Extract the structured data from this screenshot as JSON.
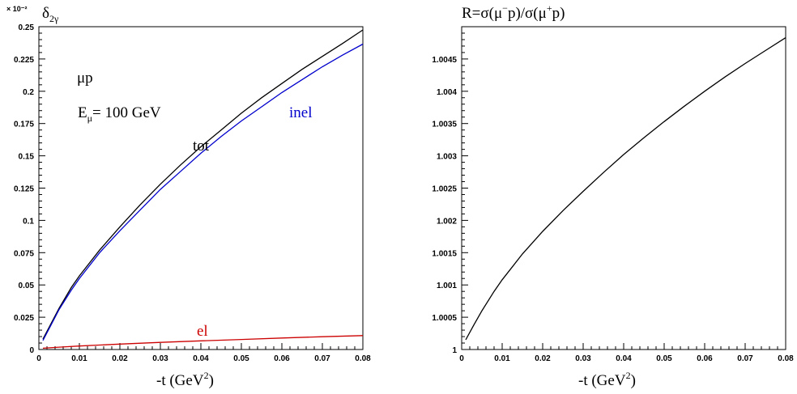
{
  "chart_data": [
    {
      "type": "line",
      "title": "δ2γ",
      "exponent_label": "× 10⁻²",
      "xlabel": "-t (GeV2)",
      "xlim": [
        0,
        0.08
      ],
      "ylim": [
        0,
        0.25
      ],
      "x_ticks": [
        "0",
        "0.01",
        "0.02",
        "0.03",
        "0.04",
        "0.05",
        "0.06",
        "0.07",
        "0.08"
      ],
      "y_ticks": [
        "0",
        "0.025",
        "0.05",
        "0.075",
        "0.1",
        "0.125",
        "0.15",
        "0.175",
        "0.2",
        "0.225",
        "0.25"
      ],
      "annotations": {
        "process": "μp",
        "energy_prefix": "E",
        "energy_sub": "μ",
        "energy_value": "= 100 GeV"
      },
      "series": [
        {
          "name": "tot",
          "color": "#000000",
          "x": [
            0.001,
            0.003,
            0.005,
            0.008,
            0.01,
            0.015,
            0.02,
            0.025,
            0.03,
            0.035,
            0.04,
            0.045,
            0.05,
            0.055,
            0.06,
            0.065,
            0.07,
            0.075,
            0.08
          ],
          "y": [
            0.008,
            0.02,
            0.032,
            0.048,
            0.057,
            0.077,
            0.095,
            0.112,
            0.128,
            0.143,
            0.157,
            0.17,
            0.183,
            0.195,
            0.206,
            0.217,
            0.227,
            0.237,
            0.2475
          ]
        },
        {
          "name": "inel",
          "color": "#0000cc",
          "x": [
            0.001,
            0.003,
            0.005,
            0.008,
            0.01,
            0.015,
            0.02,
            0.025,
            0.03,
            0.035,
            0.04,
            0.045,
            0.05,
            0.055,
            0.06,
            0.065,
            0.07,
            0.075,
            0.08
          ],
          "y": [
            0.007,
            0.019,
            0.031,
            0.046,
            0.055,
            0.075,
            0.092,
            0.108,
            0.124,
            0.138,
            0.152,
            0.165,
            0.177,
            0.188,
            0.199,
            0.209,
            0.219,
            0.228,
            0.2365
          ]
        },
        {
          "name": "el",
          "color": "#cc0000",
          "x": [
            0.001,
            0.005,
            0.01,
            0.02,
            0.03,
            0.04,
            0.05,
            0.06,
            0.07,
            0.08
          ],
          "y": [
            0.001,
            0.0018,
            0.0027,
            0.0042,
            0.0055,
            0.0067,
            0.0078,
            0.0089,
            0.0099,
            0.0108
          ]
        }
      ],
      "labels": {
        "tot": "tot",
        "inel": "inel",
        "el": "el"
      }
    },
    {
      "type": "line",
      "title": "R=σ(μ−p)/σ(μ+p)",
      "xlabel": "-t (GeV2)",
      "xlim": [
        0,
        0.08
      ],
      "ylim": [
        1,
        1.005
      ],
      "x_ticks": [
        "0",
        "0.01",
        "0.02",
        "0.03",
        "0.04",
        "0.05",
        "0.06",
        "0.07",
        "0.08"
      ],
      "y_ticks": [
        "1",
        "1.0005",
        "1.001",
        "1.0015",
        "1.002",
        "1.0025",
        "1.003",
        "1.0035",
        "1.004",
        "1.0045"
      ],
      "series": [
        {
          "color": "#000000",
          "x": [
            0.001,
            0.003,
            0.005,
            0.008,
            0.01,
            0.015,
            0.02,
            0.025,
            0.03,
            0.035,
            0.04,
            0.045,
            0.05,
            0.055,
            0.06,
            0.065,
            0.07,
            0.075,
            0.08
          ],
          "y": [
            1.00015,
            1.00038,
            1.0006,
            1.0009,
            1.00108,
            1.00148,
            1.00183,
            1.00215,
            1.00245,
            1.00274,
            1.00302,
            1.00328,
            1.00353,
            1.00377,
            1.004,
            1.00422,
            1.00443,
            1.00463,
            1.00483
          ]
        }
      ]
    }
  ]
}
